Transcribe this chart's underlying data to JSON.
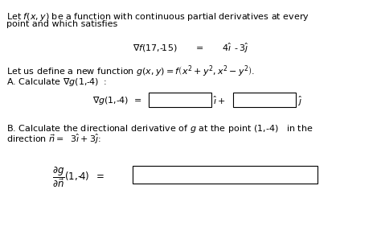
{
  "background_color": "#ffffff",
  "text_color": "#000000",
  "box_color": "#ffffff",
  "box_edge_color": "#000000",
  "figsize": [
    4.74,
    2.82
  ],
  "dpi": 100,
  "font_size": 8.0,
  "lines": {
    "l1": "Let $f(x, y)$ be a function with continuous partial derivatives at every",
    "l2": "point and which satisfies",
    "l3": "$\\nabla f(17,\\!-\\!15)\\quad = \\quad 4\\hat{\\imath}\\; \\text{-}\\,3\\hat{\\jmath}$",
    "l4": "Let us define a new function $g(x, y) = f\\left(x^2 + y^2, x^2 - y^2\\right).$",
    "l5": "A. Calculate $\\nabla g(1,\\!-\\!4)\\;$ :",
    "l6a": "$\\nabla g(1,\\!-\\!4) \\;\\; = $",
    "l6b": "$\\hat{\\imath} +$",
    "l6c": "$\\hat{\\jmath}$",
    "l7": "B. Calculate the directional derivative of $g$ at the point (1,-4)   in the",
    "l8": "direction $\\vec{n} = \\;\\; 3\\hat{\\imath} +3\\hat{\\jmath}$:",
    "l9": "$\\dfrac{\\partial g}{\\partial \\vec{n}}(1,\\!-\\!4) \\;\\; = $"
  }
}
